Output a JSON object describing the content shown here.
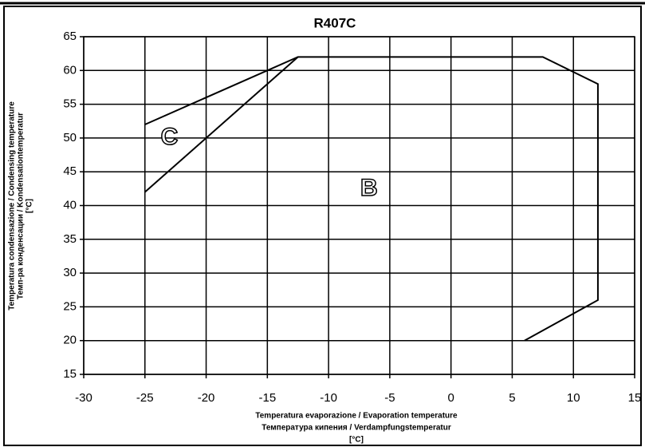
{
  "chart_data": {
    "type": "line",
    "title": "R407C",
    "xlabel": [
      "Temperatura evaporazione / Evaporation temperature",
      "Температура кипения / Verdampfungstemperatur",
      "[°C]"
    ],
    "ylabel": [
      "Temperatura condensazione / Condensing temperature",
      "Темп-ра конденсации / Kondensationtemperatur",
      "[°C]"
    ],
    "series": [
      {
        "color": "#000000",
        "x": [
          -25,
          -12.5,
          7.5,
          12,
          12,
          6
        ],
        "values": [
          52,
          62,
          62,
          58,
          26,
          20
        ]
      },
      {
        "color": "#000000",
        "x": [
          -25,
          -12.5
        ],
        "values": [
          42,
          62
        ]
      }
    ],
    "annotations": [
      {
        "text": "C",
        "x": -23,
        "y": 50
      },
      {
        "text": "B",
        "x": -6.7,
        "y": 42.4
      }
    ],
    "xlim": [
      -30,
      15
    ],
    "xticks": [
      -30,
      -25,
      -20,
      -15,
      -10,
      -5,
      0,
      5,
      10,
      15
    ],
    "ylim": [
      15,
      65
    ],
    "yticks": [
      15,
      20,
      25,
      30,
      35,
      40,
      45,
      50,
      55,
      60,
      65
    ],
    "grid": true
  }
}
